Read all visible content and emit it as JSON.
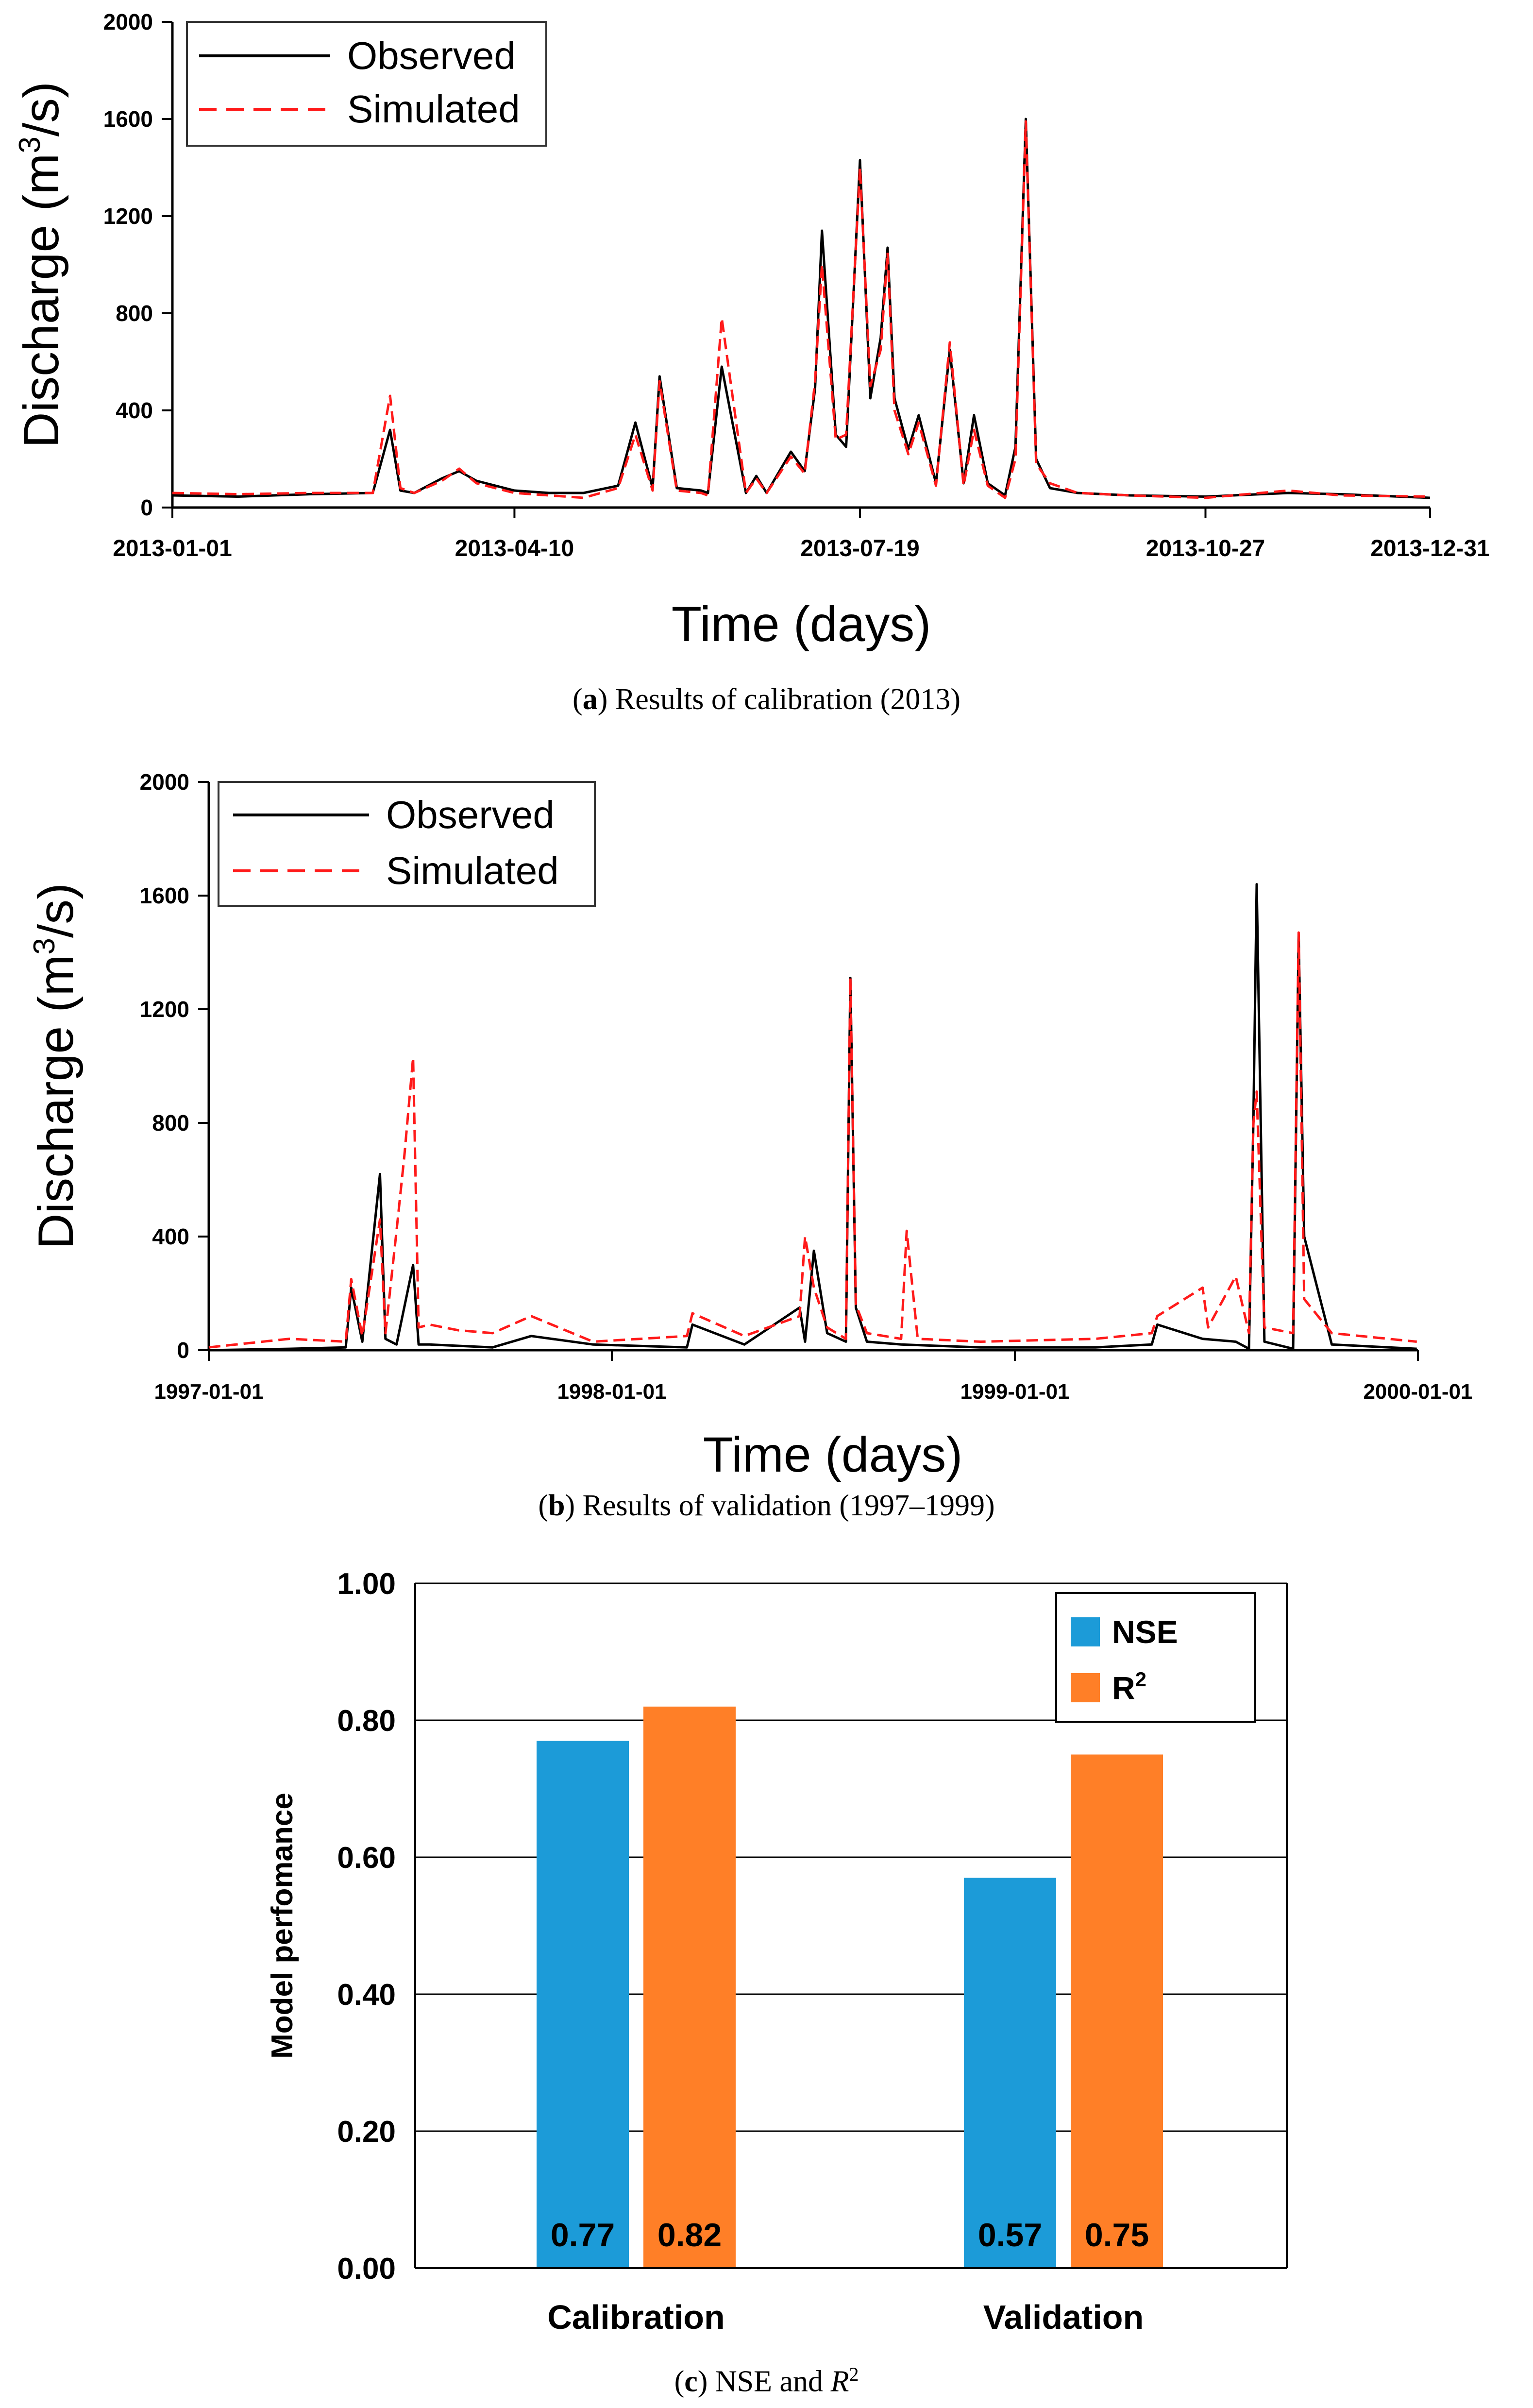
{
  "colors": {
    "observed": "#000000",
    "simulated": "#ff1a1a",
    "nse": "#1c9bd8",
    "r2": "#ff7f27"
  },
  "captions": {
    "a": {
      "letter": "a",
      "text": " Results of calibration (2013)"
    },
    "b": {
      "letter": "b",
      "text": " Results of validation (1997–1999)"
    },
    "c": {
      "letter": "c",
      "text": " NSE and ",
      "italic": "R",
      "sup": "2"
    }
  },
  "chart_data": [
    {
      "type": "line",
      "xlabel": "Time (days)",
      "ylabel_main": "Discharge (m",
      "ylabel_sup": "3",
      "ylabel_end": "/s)",
      "ylim": [
        0,
        2000
      ],
      "yticks": [
        "0",
        "400",
        "800",
        "1200",
        "1600",
        "2000"
      ],
      "xlim": [
        "2013-01-01",
        "2013-12-31"
      ],
      "xticks": [
        "2013-01-01",
        "2013-04-10",
        "2013-07-19",
        "2013-10-27",
        "2013-12-31"
      ],
      "legend": [
        "Observed",
        "Simulated"
      ],
      "legend_position": "top-left",
      "series": [
        {
          "name": "Observed",
          "style": "solid",
          "x": [
            "2013-01-01",
            "2013-01-20",
            "2013-02-10",
            "2013-02-28",
            "2013-03-05",
            "2013-03-08",
            "2013-03-12",
            "2013-03-20",
            "2013-03-25",
            "2013-03-30",
            "2013-04-10",
            "2013-04-20",
            "2013-04-30",
            "2013-05-10",
            "2013-05-15",
            "2013-05-20",
            "2013-05-22",
            "2013-05-27",
            "2013-06-03",
            "2013-06-05",
            "2013-06-09",
            "2013-06-16",
            "2013-06-19",
            "2013-06-22",
            "2013-06-29",
            "2013-07-03",
            "2013-07-06",
            "2013-07-08",
            "2013-07-12",
            "2013-07-15",
            "2013-07-19",
            "2013-07-22",
            "2013-07-25",
            "2013-07-27",
            "2013-07-29",
            "2013-08-02",
            "2013-08-05",
            "2013-08-10",
            "2013-08-14",
            "2013-08-18",
            "2013-08-21",
            "2013-08-25",
            "2013-08-30",
            "2013-09-02",
            "2013-09-05",
            "2013-09-08",
            "2013-09-12",
            "2013-09-20",
            "2013-10-05",
            "2013-10-27",
            "2013-11-20",
            "2013-12-05",
            "2013-12-31"
          ],
          "values": [
            50,
            45,
            55,
            60,
            320,
            70,
            60,
            120,
            150,
            110,
            70,
            60,
            60,
            90,
            350,
            80,
            540,
            80,
            70,
            60,
            580,
            60,
            130,
            60,
            230,
            150,
            490,
            1140,
            300,
            250,
            1430,
            450,
            700,
            1070,
            450,
            240,
            380,
            100,
            650,
            100,
            380,
            100,
            50,
            250,
            1600,
            200,
            80,
            60,
            50,
            45,
            60,
            55,
            40
          ]
        },
        {
          "name": "Simulated",
          "style": "dashed",
          "x": [
            "2013-01-01",
            "2013-01-20",
            "2013-02-10",
            "2013-02-28",
            "2013-03-05",
            "2013-03-08",
            "2013-03-12",
            "2013-03-20",
            "2013-03-25",
            "2013-03-30",
            "2013-04-10",
            "2013-04-20",
            "2013-04-30",
            "2013-05-10",
            "2013-05-15",
            "2013-05-20",
            "2013-05-22",
            "2013-05-27",
            "2013-06-03",
            "2013-06-05",
            "2013-06-09",
            "2013-06-16",
            "2013-06-19",
            "2013-06-22",
            "2013-06-29",
            "2013-07-03",
            "2013-07-06",
            "2013-07-08",
            "2013-07-12",
            "2013-07-15",
            "2013-07-19",
            "2013-07-22",
            "2013-07-25",
            "2013-07-27",
            "2013-07-29",
            "2013-08-02",
            "2013-08-05",
            "2013-08-10",
            "2013-08-14",
            "2013-08-18",
            "2013-08-21",
            "2013-08-25",
            "2013-08-30",
            "2013-09-02",
            "2013-09-05",
            "2013-09-08",
            "2013-09-12",
            "2013-09-20",
            "2013-10-05",
            "2013-10-27",
            "2013-11-20",
            "2013-12-05",
            "2013-12-31"
          ],
          "values": [
            60,
            55,
            60,
            60,
            460,
            80,
            60,
            110,
            160,
            100,
            60,
            50,
            40,
            80,
            300,
            70,
            520,
            70,
            60,
            50,
            780,
            60,
            120,
            60,
            210,
            140,
            520,
            1000,
            280,
            300,
            1400,
            500,
            650,
            1050,
            400,
            220,
            350,
            90,
            680,
            90,
            320,
            90,
            40,
            200,
            1590,
            180,
            100,
            60,
            50,
            40,
            70,
            50,
            45
          ]
        }
      ]
    },
    {
      "type": "line",
      "xlabel": "Time (days)",
      "ylabel_main": "Discharge (m",
      "ylabel_sup": "3",
      "ylabel_end": "/s)",
      "ylim": [
        0,
        2000
      ],
      "yticks": [
        "0",
        "400",
        "800",
        "1200",
        "1600",
        "2000"
      ],
      "xlim": [
        "1997-01-01",
        "2000-01-01"
      ],
      "xticks": [
        "1997-01-01",
        "1998-01-01",
        "1999-01-01",
        "2000-01-01"
      ],
      "legend": [
        "Observed",
        "Simulated"
      ],
      "legend_position": "top-left",
      "series": [
        {
          "name": "Observed",
          "style": "solid",
          "x": [
            "1997-01-01",
            "1997-03-15",
            "1997-05-05",
            "1997-05-10",
            "1997-05-20",
            "1997-06-05",
            "1997-06-10",
            "1997-06-20",
            "1997-07-05",
            "1997-07-10",
            "1997-07-20",
            "1997-09-15",
            "1997-10-20",
            "1997-12-15",
            "1998-03-10",
            "1998-03-15",
            "1998-05-01",
            "1998-06-20",
            "1998-06-25",
            "1998-07-03",
            "1998-07-15",
            "1998-08-01",
            "1998-08-05",
            "1998-08-10",
            "1998-08-20",
            "1998-09-20",
            "1998-12-01",
            "1999-03-15",
            "1999-05-05",
            "1999-05-10",
            "1999-06-20",
            "1999-07-20",
            "1999-08-01",
            "1999-08-05",
            "1999-08-08",
            "1999-08-15",
            "1999-09-10",
            "1999-09-15",
            "1999-09-20",
            "1999-10-15",
            "1999-12-31"
          ],
          "values": [
            0,
            5,
            10,
            220,
            30,
            620,
            40,
            20,
            300,
            20,
            20,
            10,
            50,
            20,
            10,
            90,
            20,
            150,
            30,
            350,
            60,
            30,
            1310,
            150,
            30,
            20,
            10,
            10,
            20,
            90,
            40,
            30,
            5,
            810,
            1640,
            30,
            5,
            1460,
            400,
            20,
            5
          ]
        },
        {
          "name": "Simulated",
          "style": "dashed",
          "x": [
            "1997-01-01",
            "1997-03-15",
            "1997-05-05",
            "1997-05-10",
            "1997-05-20",
            "1997-06-05",
            "1997-06-10",
            "1997-06-20",
            "1997-06-27",
            "1997-07-05",
            "1997-07-10",
            "1997-07-20",
            "1997-08-15",
            "1997-09-15",
            "1997-10-20",
            "1997-12-15",
            "1998-03-10",
            "1998-03-15",
            "1998-05-01",
            "1998-06-20",
            "1998-06-25",
            "1998-07-03",
            "1998-07-15",
            "1998-08-01",
            "1998-08-05",
            "1998-08-10",
            "1998-08-20",
            "1998-09-20",
            "1998-09-25",
            "1998-10-05",
            "1998-12-01",
            "1999-03-15",
            "1999-05-05",
            "1999-05-10",
            "1999-06-20",
            "1999-06-25",
            "1999-07-20",
            "1999-08-01",
            "1999-08-05",
            "1999-08-08",
            "1999-08-15",
            "1999-09-10",
            "1999-09-15",
            "1999-09-20",
            "1999-10-15",
            "1999-12-31"
          ],
          "values": [
            10,
            40,
            30,
            250,
            50,
            460,
            60,
            420,
            680,
            1030,
            80,
            90,
            70,
            60,
            120,
            30,
            50,
            130,
            50,
            120,
            400,
            220,
            80,
            40,
            1310,
            160,
            60,
            40,
            420,
            40,
            30,
            40,
            60,
            120,
            220,
            80,
            260,
            60,
            800,
            910,
            80,
            60,
            1470,
            180,
            60,
            30
          ]
        }
      ]
    },
    {
      "type": "bar",
      "title": "",
      "xlabel": "",
      "ylabel": "Model perfomance",
      "ylim": [
        0,
        1
      ],
      "yticks": [
        "0.00",
        "0.20",
        "0.40",
        "0.60",
        "0.80",
        "1.00"
      ],
      "categories": [
        "Calibration",
        "Validation"
      ],
      "legend_position": "top-right",
      "series": [
        {
          "name": "NSE",
          "values": [
            0.77,
            0.57
          ],
          "labels": [
            "0.77",
            "0.57"
          ]
        },
        {
          "name": "R",
          "name_sup": "2",
          "values": [
            0.82,
            0.75
          ],
          "labels": [
            "0.82",
            "0.75"
          ]
        }
      ]
    }
  ]
}
